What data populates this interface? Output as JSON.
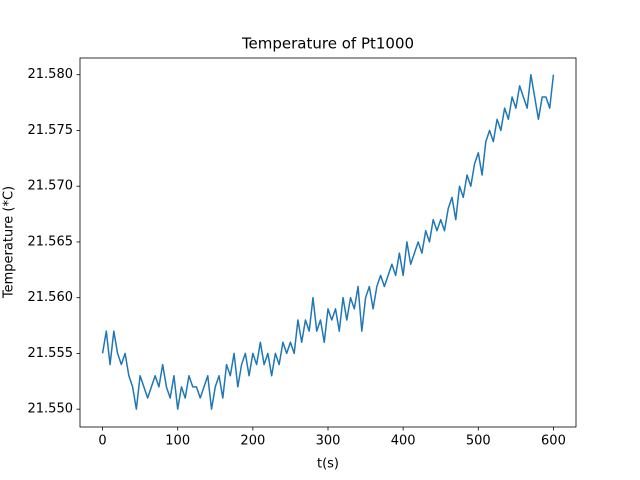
{
  "chart_data": {
    "type": "line",
    "title": "Temperature of Pt1000",
    "x_label": "t(s)",
    "y_label": "Temperature (*C)",
    "color": "#1f77b4",
    "x": [
      0,
      5,
      10,
      15,
      20,
      25,
      30,
      35,
      40,
      45,
      50,
      55,
      60,
      65,
      70,
      75,
      80,
      85,
      90,
      95,
      100,
      105,
      110,
      115,
      120,
      125,
      130,
      135,
      140,
      145,
      150,
      155,
      160,
      165,
      170,
      175,
      180,
      185,
      190,
      195,
      200,
      205,
      210,
      215,
      220,
      225,
      230,
      235,
      240,
      245,
      250,
      255,
      260,
      265,
      270,
      275,
      280,
      285,
      290,
      295,
      300,
      305,
      310,
      315,
      320,
      325,
      330,
      335,
      340,
      345,
      350,
      355,
      360,
      365,
      370,
      375,
      380,
      385,
      390,
      395,
      400,
      405,
      410,
      415,
      420,
      425,
      430,
      435,
      440,
      445,
      450,
      455,
      460,
      465,
      470,
      475,
      480,
      485,
      490,
      495,
      500,
      505,
      510,
      515,
      520,
      525,
      530,
      535,
      540,
      545,
      550,
      555,
      560,
      565,
      570,
      575,
      580,
      585,
      590,
      595,
      600
    ],
    "values": [
      21.555,
      21.557,
      21.554,
      21.557,
      21.555,
      21.554,
      21.555,
      21.553,
      21.552,
      21.55,
      21.553,
      21.552,
      21.551,
      21.552,
      21.553,
      21.552,
      21.554,
      21.552,
      21.551,
      21.553,
      21.55,
      21.552,
      21.551,
      21.553,
      21.552,
      21.552,
      21.551,
      21.552,
      21.553,
      21.55,
      21.552,
      21.553,
      21.551,
      21.554,
      21.553,
      21.555,
      21.552,
      21.554,
      21.555,
      21.553,
      21.555,
      21.554,
      21.556,
      21.554,
      21.555,
      21.553,
      21.555,
      21.554,
      21.556,
      21.555,
      21.556,
      21.555,
      21.558,
      21.556,
      21.558,
      21.557,
      21.56,
      21.557,
      21.558,
      21.556,
      21.559,
      21.558,
      21.559,
      21.557,
      21.56,
      21.558,
      21.56,
      21.559,
      21.561,
      21.557,
      21.56,
      21.561,
      21.559,
      21.561,
      21.562,
      21.561,
      21.562,
      21.563,
      21.562,
      21.564,
      21.562,
      21.565,
      21.563,
      21.564,
      21.565,
      21.564,
      21.566,
      21.565,
      21.567,
      21.566,
      21.567,
      21.566,
      21.568,
      21.569,
      21.567,
      21.57,
      21.569,
      21.571,
      21.57,
      21.572,
      21.573,
      21.571,
      21.574,
      21.575,
      21.574,
      21.576,
      21.575,
      21.577,
      21.576,
      21.578,
      21.577,
      21.579,
      21.578,
      21.577,
      21.58,
      21.578,
      21.576,
      21.578,
      21.578,
      21.577,
      21.58
    ],
    "xlim": [
      -30,
      630
    ],
    "xticks": [
      0,
      100,
      200,
      300,
      400,
      500,
      600
    ],
    "ylim": [
      21.5484,
      21.5815
    ],
    "yticks": [
      {
        "value": 21.55,
        "label": "21.550"
      },
      21.555,
      {
        "value": 21.56,
        "label": "21.560"
      },
      21.565,
      {
        "value": 21.57,
        "label": "21.570"
      },
      21.575,
      {
        "value": 21.58,
        "label": "21.580"
      }
    ],
    "grid": false
  }
}
